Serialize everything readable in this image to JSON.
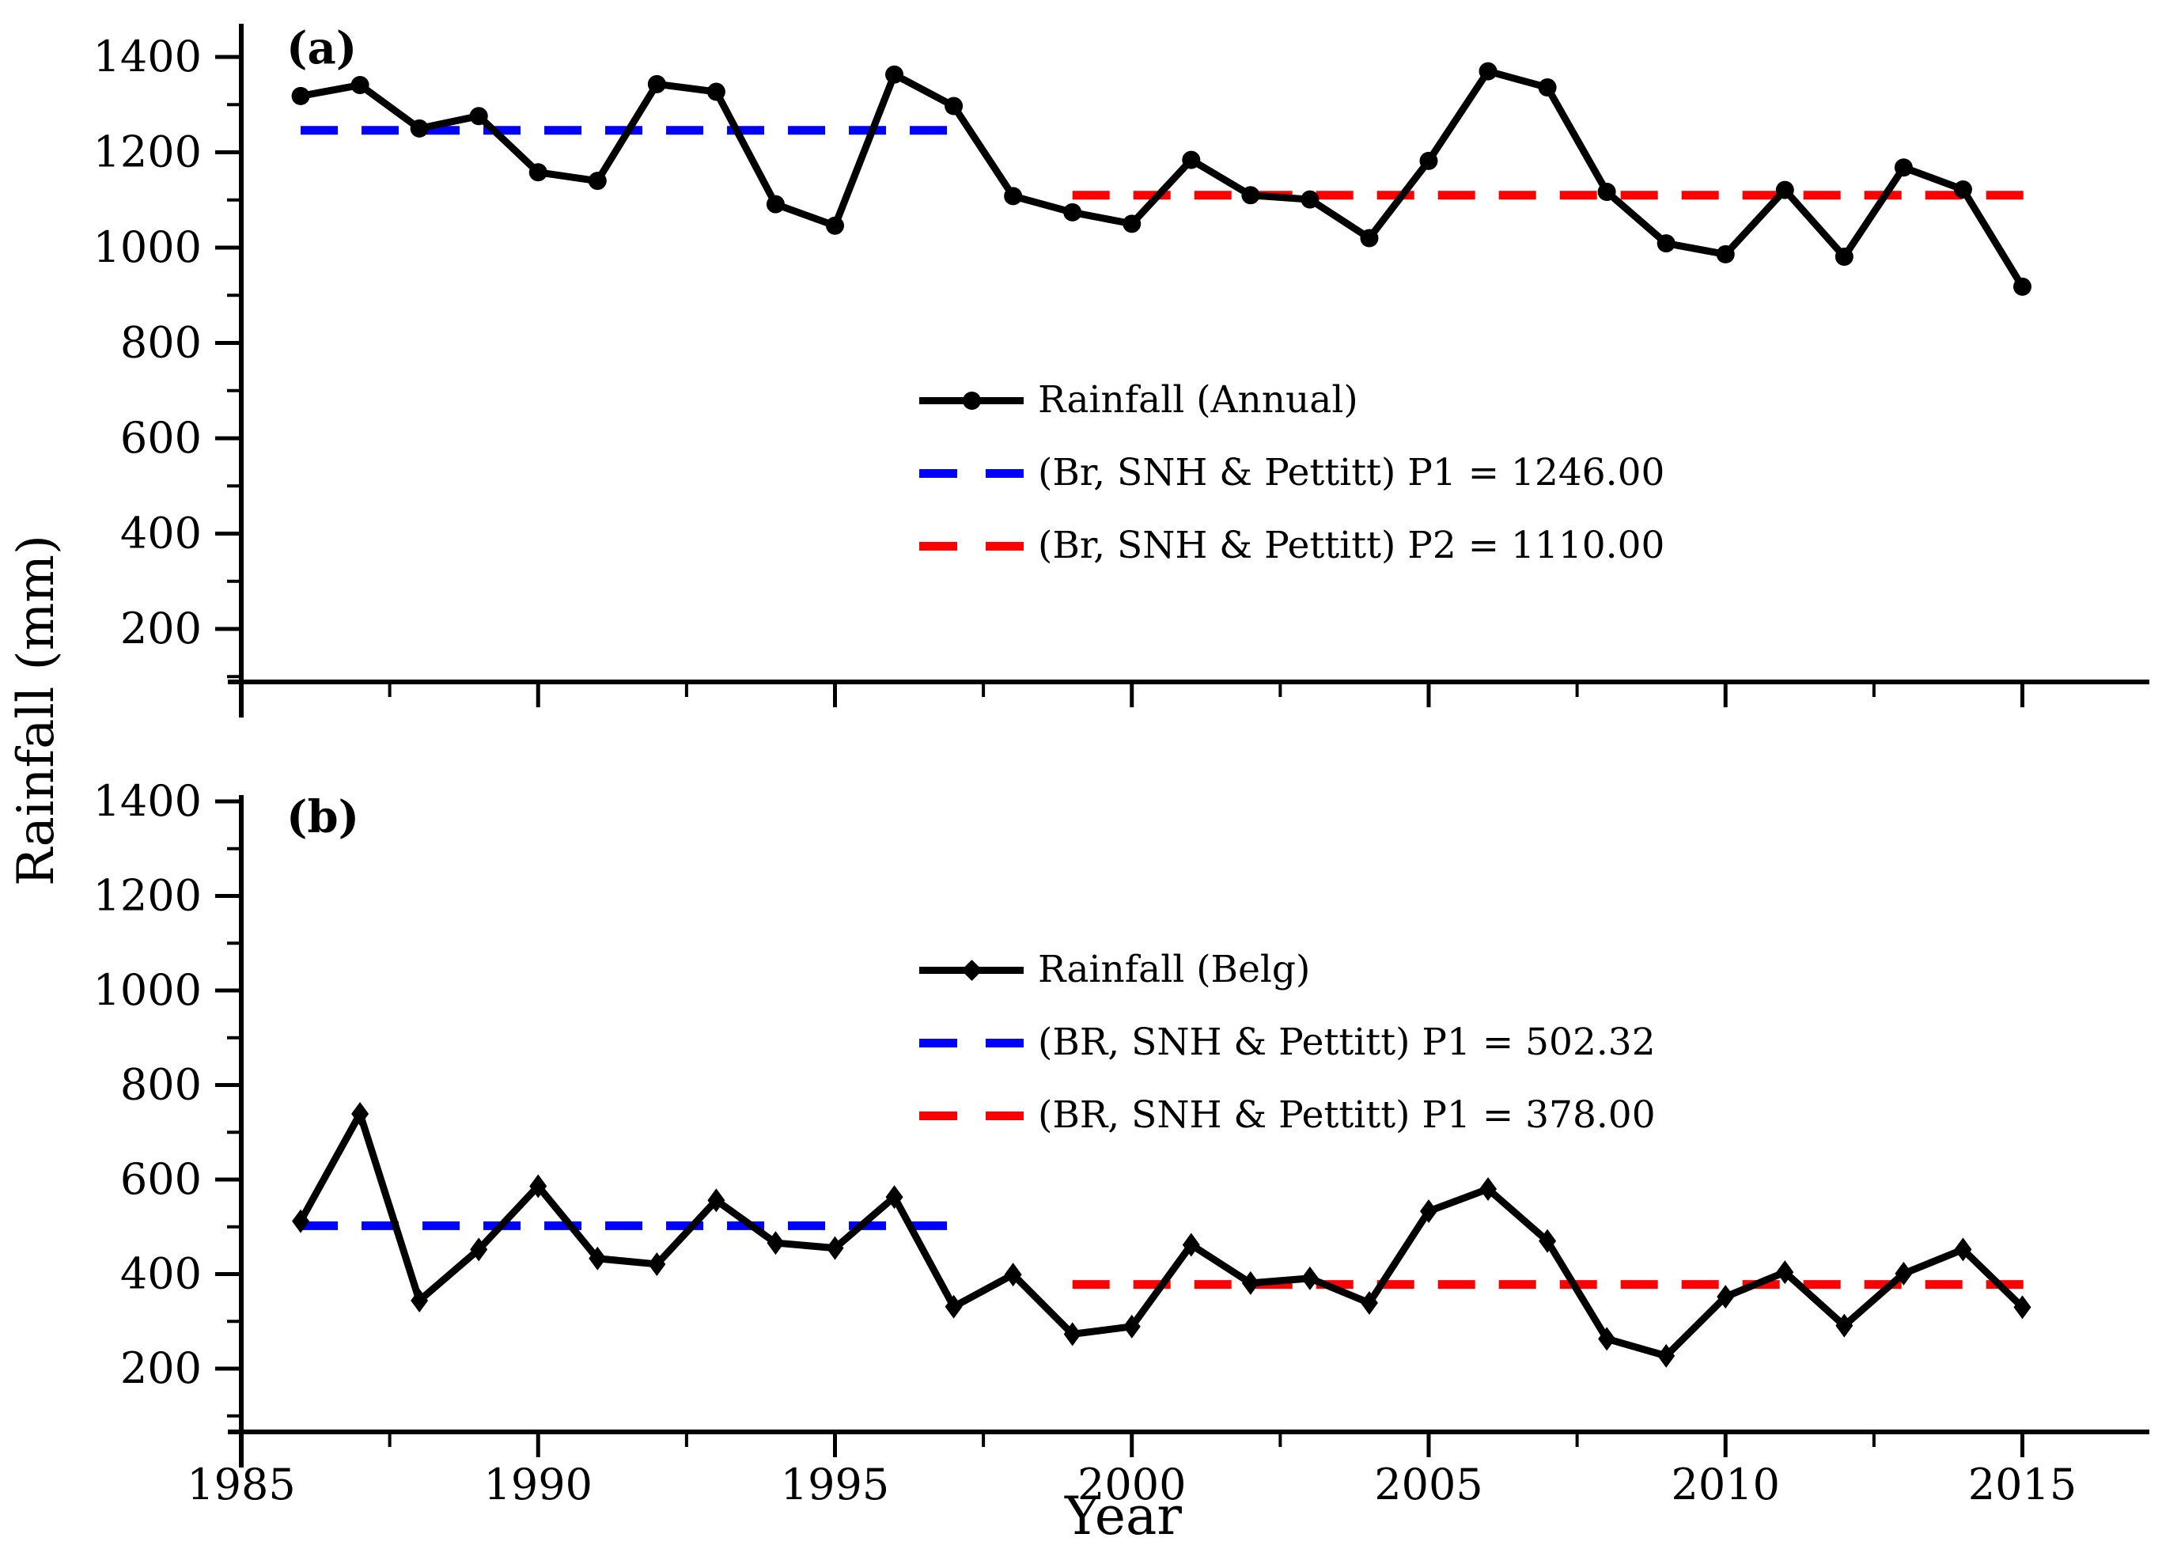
{
  "figure": {
    "y_axis_title": "Rainfall (mm)",
    "x_axis_title": "Year"
  },
  "chart_data": [
    {
      "type": "line",
      "panel_label": "(a)",
      "x": [
        1986,
        1987,
        1988,
        1989,
        1990,
        1991,
        1992,
        1993,
        1994,
        1995,
        1996,
        1997,
        1998,
        1999,
        2000,
        2001,
        2002,
        2003,
        2004,
        2005,
        2006,
        2007,
        2008,
        2009,
        2010,
        2011,
        2012,
        2013,
        2014,
        2015
      ],
      "series": [
        {
          "name": "Rainfall (Annual)",
          "marker": "circle",
          "color": "#000000",
          "values": [
            1318,
            1341,
            1250,
            1276,
            1158,
            1140,
            1343,
            1327,
            1091,
            1046,
            1363,
            1297,
            1108,
            1074,
            1050,
            1184,
            1110,
            1101,
            1020,
            1182,
            1370,
            1336,
            1117,
            1009,
            986,
            1121,
            981,
            1168,
            1122,
            918
          ]
        }
      ],
      "reference_lines": [
        {
          "label": "(Br, SNH & Pettitt) P1 = 1246.00",
          "value": 1246.0,
          "color": "#0000FF",
          "x_start": 1986,
          "x_end": 1997
        },
        {
          "label": "(Br, SNH & Pettitt) P2 = 1110.00",
          "value": 1110.0,
          "color": "#FF0000",
          "x_start": 1999,
          "x_end": 2015.3
        }
      ],
      "yticks": [
        200,
        400,
        600,
        800,
        1000,
        1200,
        1400
      ],
      "yminor": [
        100,
        300,
        500,
        700,
        900,
        1100,
        1300
      ],
      "xticks": [
        1985,
        1990,
        1995,
        2000,
        2005,
        2010,
        2015
      ],
      "xminor": [
        1987.5,
        1992.5,
        1997.5,
        2002.5,
        2007.5,
        2012.5
      ],
      "xtick_labels_visible": false,
      "ylim": [
        85,
        1470
      ],
      "xlim": [
        1985,
        2017.1
      ],
      "grid": false,
      "legend_position": "center"
    },
    {
      "type": "line",
      "panel_label": "(b)",
      "x": [
        1986,
        1987,
        1988,
        1989,
        1990,
        1991,
        1992,
        1993,
        1994,
        1995,
        1996,
        1997,
        1998,
        1999,
        2000,
        2001,
        2002,
        2003,
        2004,
        2005,
        2006,
        2007,
        2008,
        2009,
        2010,
        2011,
        2012,
        2013,
        2014,
        2015
      ],
      "series": [
        {
          "name": "Rainfall (Belg)",
          "marker": "diamond",
          "color": "#000000",
          "values": [
            512,
            739,
            344,
            452,
            586,
            433,
            421,
            556,
            466,
            455,
            563,
            331,
            399,
            273,
            289,
            462,
            381,
            391,
            339,
            533,
            580,
            470,
            263,
            227,
            352,
            404,
            291,
            401,
            452,
            330
          ]
        }
      ],
      "reference_lines": [
        {
          "label": "(BR, SNH & Pettitt) P1 =  502.32",
          "value": 502.32,
          "color": "#0000FF",
          "x_start": 1986,
          "x_end": 1997
        },
        {
          "label": "(BR, SNH & Pettitt) P1 =  378.00",
          "value": 378.0,
          "color": "#FF0000",
          "x_start": 1999,
          "x_end": 2015.3
        }
      ],
      "yticks": [
        200,
        400,
        600,
        800,
        1000,
        1200,
        1400
      ],
      "yminor": [
        100,
        300,
        500,
        700,
        900,
        1100,
        1300
      ],
      "xticks": [
        1985,
        1990,
        1995,
        2000,
        2005,
        2010,
        2015
      ],
      "xminor": [
        1987.5,
        1992.5,
        1997.5,
        2002.5,
        2007.5,
        2012.5
      ],
      "xtick_labels_visible": true,
      "ylim": [
        85,
        1420
      ],
      "xlim": [
        1985,
        2017.1
      ],
      "grid": false,
      "legend_position": "center"
    }
  ]
}
